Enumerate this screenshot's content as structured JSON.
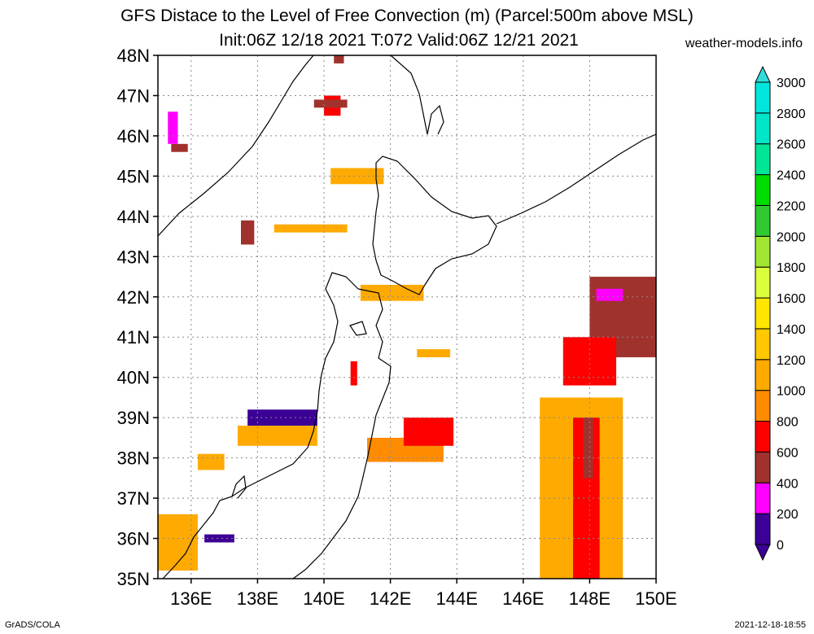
{
  "title_line1": "GFS Distace to the Level of Free Convection (m) (Parcel:500m above MSL)",
  "title_line2": "Init:06Z 12/18 2021 T:072 Valid:06Z 12/21 2021",
  "site": "weather-models.info",
  "footer_left": "GrADS/COLA",
  "footer_right": "2021-12-18-18:55",
  "lat_labels": [
    "48N",
    "47N",
    "46N",
    "45N",
    "44N",
    "43N",
    "42N",
    "41N",
    "40N",
    "39N",
    "38N",
    "37N",
    "36N",
    "35N"
  ],
  "lon_labels": [
    "136E",
    "138E",
    "140E",
    "142E",
    "144E",
    "146E",
    "148E",
    "150E"
  ],
  "colorbar": {
    "levels": [
      "0",
      "200",
      "400",
      "600",
      "800",
      "1000",
      "1200",
      "1400",
      "1600",
      "1800",
      "2000",
      "2200",
      "2400",
      "2600",
      "2800",
      "3000"
    ],
    "colors": [
      "#3c0096",
      "#ff00ff",
      "#a0322d",
      "#ff0000",
      "#ff8c00",
      "#ffaa00",
      "#ffc800",
      "#ffe600",
      "#dcff3c",
      "#a0e632",
      "#32c832",
      "#00dc00",
      "#00e696",
      "#00e6c8",
      "#00e6dc",
      "#32dcdc"
    ]
  },
  "chart_data": {
    "type": "heatmap",
    "title": "GFS Distace to the Level of Free Convection (m) (Parcel:500m above MSL)",
    "xlim": [
      135,
      150
    ],
    "ylim": [
      35,
      48
    ],
    "units": "m",
    "cells": [
      {
        "lon": 135.4,
        "lat": 45.6,
        "lon2": 135.9,
        "lat2": 45.8,
        "v": 400
      },
      {
        "lon": 135.3,
        "lat": 45.8,
        "lon2": 135.6,
        "lat2": 46.6,
        "v": 200
      },
      {
        "lon": 140.0,
        "lat": 46.5,
        "lon2": 140.5,
        "lat2": 47.0,
        "v": 600
      },
      {
        "lon": 139.7,
        "lat": 46.7,
        "lon2": 140.7,
        "lat2": 46.9,
        "v": 400
      },
      {
        "lon": 140.3,
        "lat": 47.8,
        "lon2": 140.6,
        "lat2": 48.0,
        "v": 400
      },
      {
        "lon": 140.2,
        "lat": 44.8,
        "lon2": 141.8,
        "lat2": 45.2,
        "v": 1000
      },
      {
        "lon": 138.5,
        "lat": 43.6,
        "lon2": 140.7,
        "lat2": 43.8,
        "v": 1000
      },
      {
        "lon": 137.5,
        "lat": 43.3,
        "lon2": 137.9,
        "lat2": 43.9,
        "v": 400
      },
      {
        "lon": 141.1,
        "lat": 41.9,
        "lon2": 143.0,
        "lat2": 42.3,
        "v": 1000
      },
      {
        "lon": 142.8,
        "lat": 40.5,
        "lon2": 143.8,
        "lat2": 40.7,
        "v": 1000
      },
      {
        "lon": 140.8,
        "lat": 39.8,
        "lon2": 141.0,
        "lat2": 40.4,
        "v": 600
      },
      {
        "lon": 137.7,
        "lat": 38.8,
        "lon2": 139.8,
        "lat2": 39.2,
        "v": 0
      },
      {
        "lon": 137.4,
        "lat": 38.3,
        "lon2": 139.8,
        "lat2": 38.8,
        "v": 1000
      },
      {
        "lon": 136.2,
        "lat": 37.7,
        "lon2": 137.0,
        "lat2": 38.1,
        "v": 1000
      },
      {
        "lon": 141.3,
        "lat": 37.9,
        "lon2": 143.6,
        "lat2": 38.5,
        "v": 800
      },
      {
        "lon": 142.4,
        "lat": 38.3,
        "lon2": 143.9,
        "lat2": 39.0,
        "v": 600
      },
      {
        "lon": 135.0,
        "lat": 35.2,
        "lon2": 136.2,
        "lat2": 36.6,
        "v": 1000
      },
      {
        "lon": 136.4,
        "lat": 35.9,
        "lon2": 137.3,
        "lat2": 36.1,
        "v": 0
      },
      {
        "lon": 146.5,
        "lat": 35.0,
        "lon2": 149.0,
        "lat2": 39.5,
        "v": 1000
      },
      {
        "lon": 147.5,
        "lat": 35.0,
        "lon2": 148.3,
        "lat2": 39.0,
        "v": 600
      },
      {
        "lon": 147.8,
        "lat": 37.5,
        "lon2": 148.1,
        "lat2": 39.0,
        "v": 400
      },
      {
        "lon": 148.0,
        "lat": 40.5,
        "lon2": 150.0,
        "lat2": 42.5,
        "v": 400
      },
      {
        "lon": 148.2,
        "lat": 41.9,
        "lon2": 149.0,
        "lat2": 42.2,
        "v": 200
      },
      {
        "lon": 147.2,
        "lat": 39.8,
        "lon2": 148.8,
        "lat2": 41.0,
        "v": 600
      }
    ]
  }
}
